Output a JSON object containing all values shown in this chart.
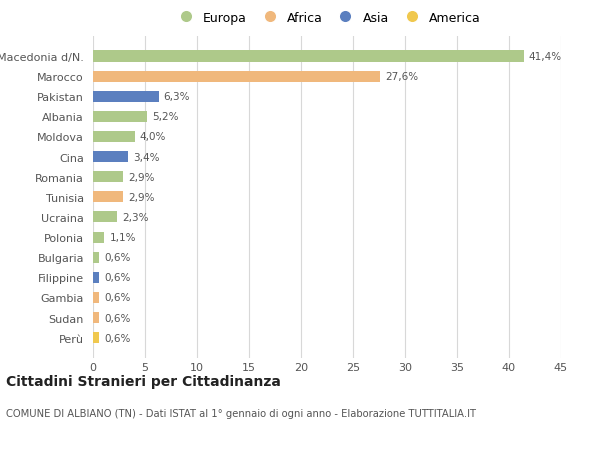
{
  "categories": [
    "Macedonia d/N.",
    "Marocco",
    "Pakistan",
    "Albania",
    "Moldova",
    "Cina",
    "Romania",
    "Tunisia",
    "Ucraina",
    "Polonia",
    "Bulgaria",
    "Filippine",
    "Gambia",
    "Sudan",
    "Perù"
  ],
  "values": [
    41.4,
    27.6,
    6.3,
    5.2,
    4.0,
    3.4,
    2.9,
    2.9,
    2.3,
    1.1,
    0.6,
    0.6,
    0.6,
    0.6,
    0.6
  ],
  "labels": [
    "41,4%",
    "27,6%",
    "6,3%",
    "5,2%",
    "4,0%",
    "3,4%",
    "2,9%",
    "2,9%",
    "2,3%",
    "1,1%",
    "0,6%",
    "0,6%",
    "0,6%",
    "0,6%",
    "0,6%"
  ],
  "colors": [
    "#aec98a",
    "#f0b87c",
    "#5b7fbf",
    "#aec98a",
    "#aec98a",
    "#5b7fbf",
    "#aec98a",
    "#f0b87c",
    "#aec98a",
    "#aec98a",
    "#aec98a",
    "#5b7fbf",
    "#f0b87c",
    "#f0b87c",
    "#f0c84e"
  ],
  "legend_labels": [
    "Europa",
    "Africa",
    "Asia",
    "America"
  ],
  "legend_colors": [
    "#aec98a",
    "#f0b87c",
    "#5b7fbf",
    "#f0c84e"
  ],
  "title": "Cittadini Stranieri per Cittadinanza",
  "subtitle": "COMUNE DI ALBIANO (TN) - Dati ISTAT al 1° gennaio di ogni anno - Elaborazione TUTTITALIA.IT",
  "xlim": [
    0,
    45
  ],
  "xticks": [
    0,
    5,
    10,
    15,
    20,
    25,
    30,
    35,
    40,
    45
  ],
  "background_color": "#ffffff",
  "grid_color": "#d8d8d8",
  "bar_height": 0.55
}
